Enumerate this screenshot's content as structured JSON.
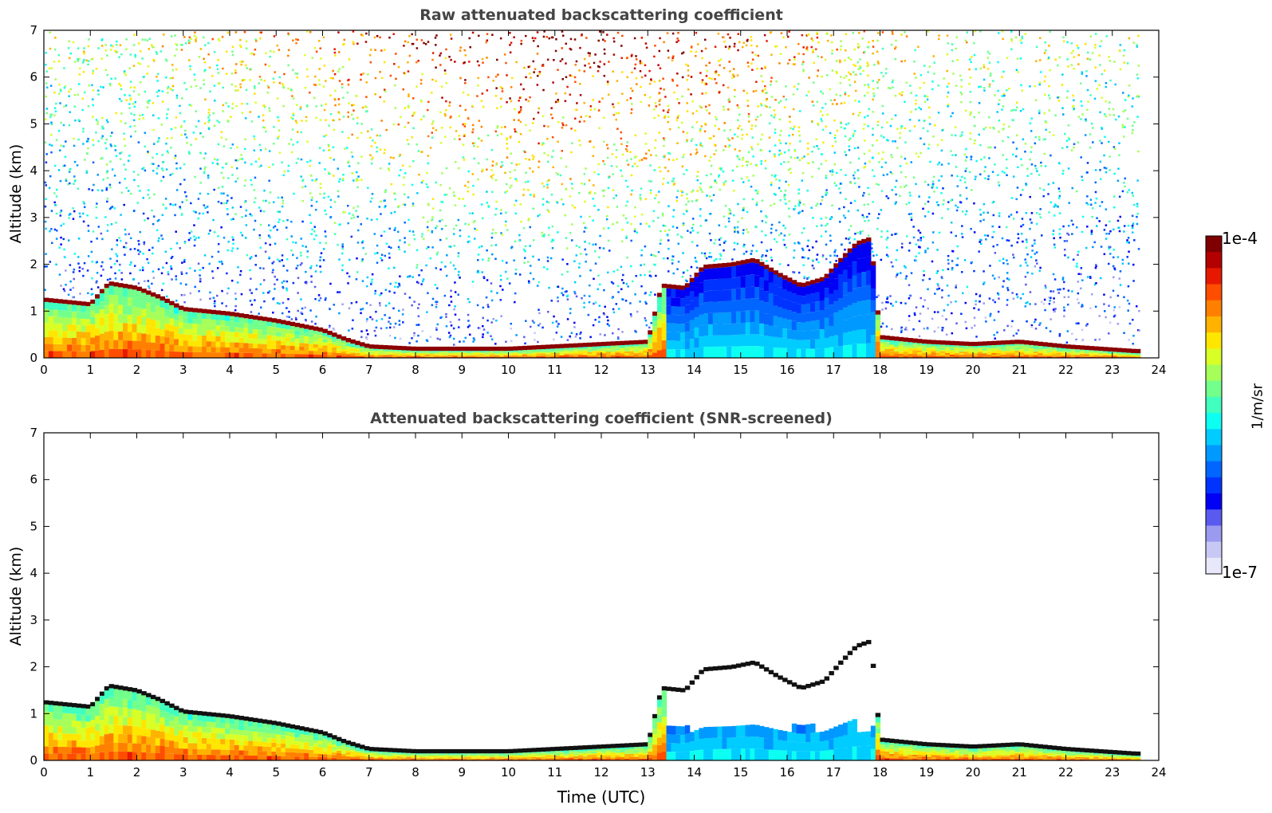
{
  "chart_data": [
    {
      "type": "heatmap",
      "title": "Raw attenuated backscattering coefficient",
      "xlabel": "",
      "ylabel": "Altitude (km)",
      "xlim": [
        0,
        24
      ],
      "ylim": [
        0,
        7
      ],
      "xticks": [
        "0",
        "1",
        "2",
        "3",
        "4",
        "5",
        "6",
        "7",
        "8",
        "9",
        "10",
        "11",
        "12",
        "13",
        "14",
        "15",
        "16",
        "17",
        "18",
        "19",
        "20",
        "21",
        "22",
        "23",
        "24"
      ],
      "yticks": [
        "0",
        "1",
        "2",
        "3",
        "4",
        "5",
        "6",
        "7"
      ],
      "screened": false,
      "cloud_base_km": [
        [
          0,
          1.2
        ],
        [
          1,
          1.1
        ],
        [
          1.4,
          1.55
        ],
        [
          2,
          1.45
        ],
        [
          2.5,
          1.25
        ],
        [
          3,
          1.0
        ],
        [
          4,
          0.9
        ],
        [
          5,
          0.75
        ],
        [
          6,
          0.55
        ],
        [
          6.5,
          0.35
        ],
        [
          7,
          0.2
        ],
        [
          8,
          0.15
        ],
        [
          10,
          0.15
        ],
        [
          12,
          0.25
        ],
        [
          13,
          0.3
        ],
        [
          13.3,
          1.5
        ],
        [
          13.8,
          1.45
        ],
        [
          14.2,
          1.9
        ],
        [
          14.8,
          1.95
        ],
        [
          15.3,
          2.05
        ],
        [
          15.8,
          1.75
        ],
        [
          16.3,
          1.5
        ],
        [
          16.8,
          1.65
        ],
        [
          17.2,
          2.1
        ],
        [
          17.5,
          2.4
        ],
        [
          17.8,
          2.5
        ],
        [
          18,
          0.4
        ],
        [
          19,
          0.3
        ],
        [
          20,
          0.25
        ],
        [
          21,
          0.3
        ],
        [
          22,
          0.2
        ],
        [
          23.5,
          0.1
        ]
      ]
    },
    {
      "type": "heatmap",
      "title": "Attenuated backscattering coefficient (SNR-screened)",
      "xlabel": "Time (UTC)",
      "ylabel": "Altitude (km)",
      "xlim": [
        0,
        24
      ],
      "ylim": [
        0,
        7
      ],
      "xticks": [
        "0",
        "1",
        "2",
        "3",
        "4",
        "5",
        "6",
        "7",
        "8",
        "9",
        "10",
        "11",
        "12",
        "13",
        "14",
        "15",
        "16",
        "17",
        "18",
        "19",
        "20",
        "21",
        "22",
        "23",
        "24"
      ],
      "yticks": [
        "0",
        "1",
        "2",
        "3",
        "4",
        "5",
        "6",
        "7"
      ],
      "screened": true,
      "cloud_base_km": [
        [
          0,
          1.2
        ],
        [
          1,
          1.1
        ],
        [
          1.4,
          1.55
        ],
        [
          2,
          1.45
        ],
        [
          2.5,
          1.25
        ],
        [
          3,
          1.0
        ],
        [
          4,
          0.9
        ],
        [
          5,
          0.75
        ],
        [
          6,
          0.55
        ],
        [
          6.5,
          0.35
        ],
        [
          7,
          0.2
        ],
        [
          8,
          0.15
        ],
        [
          10,
          0.15
        ],
        [
          12,
          0.25
        ],
        [
          13,
          0.3
        ],
        [
          13.3,
          1.5
        ],
        [
          13.8,
          1.45
        ],
        [
          14.2,
          1.9
        ],
        [
          14.8,
          1.95
        ],
        [
          15.3,
          2.05
        ],
        [
          15.8,
          1.75
        ],
        [
          16.3,
          1.5
        ],
        [
          16.8,
          1.65
        ],
        [
          17.2,
          2.1
        ],
        [
          17.5,
          2.4
        ],
        [
          17.8,
          2.5
        ],
        [
          18,
          0.4
        ],
        [
          19,
          0.3
        ],
        [
          20,
          0.25
        ],
        [
          21,
          0.3
        ],
        [
          22,
          0.2
        ],
        [
          23.5,
          0.1
        ]
      ]
    }
  ],
  "colorbar": {
    "label": "1/m/sr",
    "max_label": "1e-4",
    "min_label": "1e-7",
    "colors": [
      "#7f0000",
      "#b30000",
      "#e61900",
      "#ff4d00",
      "#ff8000",
      "#ffb300",
      "#ffe600",
      "#d9ff26",
      "#a6ff59",
      "#73ff8c",
      "#40ffbf",
      "#0dfff2",
      "#00ccff",
      "#0099ff",
      "#0066ff",
      "#0033ff",
      "#0000f5",
      "#5a5af0",
      "#9a9af0",
      "#c8c8f5",
      "#e8e8fa"
    ]
  }
}
